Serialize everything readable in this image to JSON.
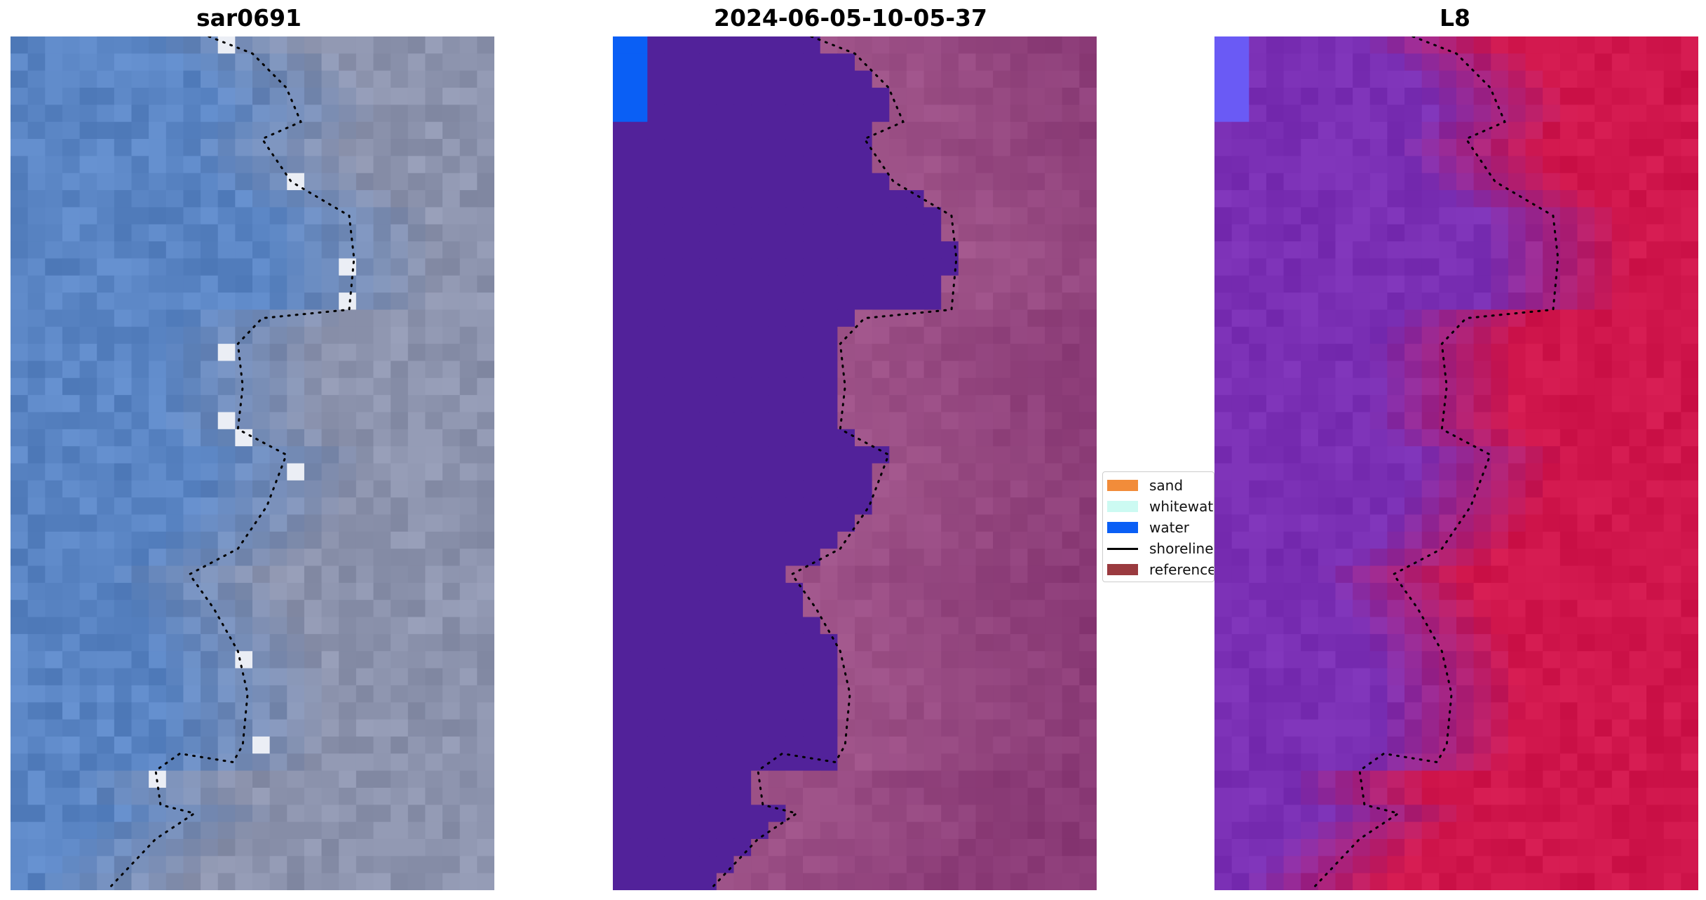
{
  "panels": [
    {
      "title": "sar0691"
    },
    {
      "title": "2024-06-05-10-05-37"
    },
    {
      "title": "L8"
    }
  ],
  "legend": {
    "items": [
      {
        "label": "sand",
        "color": "#f28c3a",
        "kind": "patch"
      },
      {
        "label": "whitewater",
        "color": "#ccfaf2",
        "kind": "patch"
      },
      {
        "label": "water",
        "color": "#0a5ff5",
        "kind": "patch"
      },
      {
        "label": "shoreline",
        "color": "#000000",
        "kind": "line"
      },
      {
        "label": "reference",
        "color": "#9a3a3f",
        "kind": "patch"
      }
    ]
  },
  "colors": {
    "rgb_water": "#5a85c4",
    "rgb_land": "#8c93ad",
    "class_water": "#52229a",
    "class_land": "#8a3a76",
    "mndwi_water": "#7a2fb4",
    "mndwi_land": "#d0164c"
  }
}
